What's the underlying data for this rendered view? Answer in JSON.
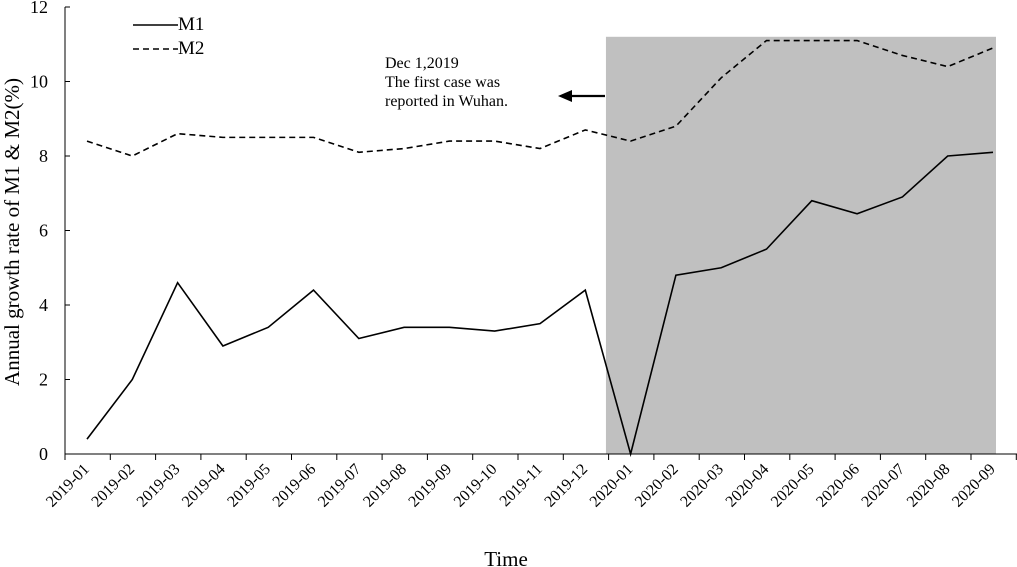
{
  "chart_data": {
    "type": "line",
    "title": "",
    "xlabel": "Time",
    "ylabel": "Annual growth rate of  M1 & M2(%)",
    "ylim": [
      0,
      12
    ],
    "yticks": [
      0,
      2,
      4,
      6,
      8,
      10,
      12
    ],
    "grid": false,
    "legend_position": "top-left",
    "categories": [
      "2019-01",
      "2019-02",
      "2019-03",
      "2019-04",
      "2019-05",
      "2019-06",
      "2019-07",
      "2019-08",
      "2019-09",
      "2019-10",
      "2019-11",
      "2019-12",
      "2020-01",
      "2020-02",
      "2020-03",
      "2020-04",
      "2020-05",
      "2020-06",
      "2020-07",
      "2020-08",
      "2020-09"
    ],
    "series": [
      {
        "name": "M1",
        "style": "solid",
        "color": "#000000",
        "values": [
          0.4,
          2.0,
          4.6,
          2.9,
          3.4,
          4.4,
          3.1,
          3.4,
          3.4,
          3.3,
          3.5,
          4.4,
          0.0,
          4.8,
          5.0,
          5.5,
          6.8,
          6.45,
          6.9,
          8.0,
          8.1
        ]
      },
      {
        "name": "M2",
        "style": "dashed",
        "color": "#000000",
        "values": [
          8.4,
          8.0,
          8.6,
          8.5,
          8.5,
          8.5,
          8.1,
          8.2,
          8.4,
          8.4,
          8.2,
          8.7,
          8.4,
          8.8,
          10.1,
          11.1,
          11.1,
          11.1,
          10.7,
          10.4,
          10.9
        ]
      }
    ],
    "shaded_region": {
      "from_category_index": 11.5,
      "to_category_index": 20,
      "y_top": 11.2,
      "color": "#c0c0c0"
    },
    "annotation": {
      "lines": [
        "Dec 1,2019",
        "The first case was",
        "reported in Wuhan."
      ],
      "arrow_direction": "left"
    }
  }
}
